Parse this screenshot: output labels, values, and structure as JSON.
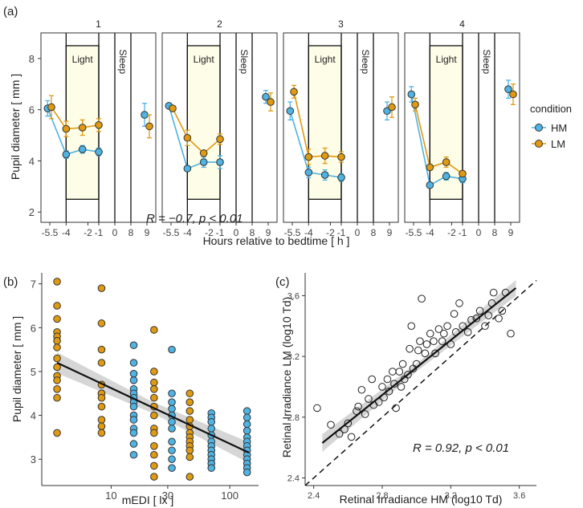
{
  "chart_data": [
    {
      "type": "line",
      "panel_label": "(a)",
      "ylabel": "Pupil diameter [ mm ]",
      "xlabel": "Hours relative to bedtime [ h ]",
      "ylim": [
        1.6,
        9.0
      ],
      "y_ticks": [
        2,
        4,
        6,
        8
      ],
      "x_ticks": [
        "-5.5",
        "-4",
        "-2",
        "-1",
        "0",
        "8",
        "9"
      ],
      "facets": [
        "1",
        "2",
        "3",
        "4"
      ],
      "light_label": "Light",
      "sleep_label": "Sleep",
      "legend": {
        "title": "condition",
        "entries": [
          "HM",
          "LM"
        ],
        "position": "right"
      },
      "colors": {
        "HM": "#4fb3e3",
        "LM": "#e09a12",
        "light_fill": "#fefde8"
      },
      "series": [
        {
          "name": "HM",
          "color": "#4fb3e3",
          "facets": [
            {
              "points": [
                {
                  "x": -5.7,
                  "y": 6.05,
                  "e": 0.3
                },
                {
                  "x": -4,
                  "y": 4.25,
                  "e": 0.15
                },
                {
                  "x": -2.5,
                  "y": 4.45,
                  "e": 0.15
                },
                {
                  "x": -1,
                  "y": 4.35,
                  "e": 0.15
                }
              ],
              "late": {
                "x": 8.85,
                "y": 5.8,
                "e": 0.45
              }
            },
            {
              "points": [
                {
                  "x": -5.7,
                  "y": 6.15,
                  "e": 0.1
                },
                {
                  "x": -4,
                  "y": 3.7,
                  "e": 0.1
                },
                {
                  "x": -2.5,
                  "y": 3.95,
                  "e": 0.2
                },
                {
                  "x": -1,
                  "y": 3.95,
                  "e": 0.25
                }
              ],
              "late": {
                "x": 8.85,
                "y": 6.5,
                "e": 0.25
              }
            },
            {
              "points": [
                {
                  "x": -5.7,
                  "y": 5.95,
                  "e": 0.35
                },
                {
                  "x": -4,
                  "y": 3.55,
                  "e": 0.2
                },
                {
                  "x": -2.5,
                  "y": 3.45,
                  "e": 0.2
                },
                {
                  "x": -1,
                  "y": 3.35,
                  "e": 0.15
                }
              ],
              "late": {
                "x": 8.85,
                "y": 5.95,
                "e": 0.35
              }
            },
            {
              "points": [
                {
                  "x": -5.7,
                  "y": 6.6,
                  "e": 0.3
                },
                {
                  "x": -4,
                  "y": 3.05,
                  "e": 0.1
                },
                {
                  "x": -2.5,
                  "y": 3.4,
                  "e": 0.15
                },
                {
                  "x": -1,
                  "y": 3.3,
                  "e": 0.15
                }
              ],
              "late": {
                "x": 8.85,
                "y": 6.8,
                "e": 0.35
              }
            }
          ]
        },
        {
          "name": "LM",
          "color": "#e09a12",
          "facets": [
            {
              "points": [
                {
                  "x": -5.35,
                  "y": 6.1,
                  "e": 0.45
                },
                {
                  "x": -4,
                  "y": 5.25,
                  "e": 0.3
                },
                {
                  "x": -2.5,
                  "y": 5.3,
                  "e": 0.3
                },
                {
                  "x": -1,
                  "y": 5.4,
                  "e": 0.25
                }
              ],
              "late": {
                "x": 9.15,
                "y": 5.35,
                "e": 0.45
              }
            },
            {
              "points": [
                {
                  "x": -5.35,
                  "y": 6.05,
                  "e": 0.1
                },
                {
                  "x": -4,
                  "y": 4.9,
                  "e": 0.3
                },
                {
                  "x": -2.5,
                  "y": 4.3,
                  "e": 0.1
                },
                {
                  "x": -1,
                  "y": 4.85,
                  "e": 0.2
                }
              ],
              "late": {
                "x": 9.15,
                "y": 6.3,
                "e": 0.35
              }
            },
            {
              "points": [
                {
                  "x": -5.35,
                  "y": 6.7,
                  "e": 0.25
                },
                {
                  "x": -4,
                  "y": 4.15,
                  "e": 0.3
                },
                {
                  "x": -2.5,
                  "y": 4.2,
                  "e": 0.3
                },
                {
                  "x": -1,
                  "y": 4.15,
                  "e": 0.2
                }
              ],
              "late": {
                "x": 9.15,
                "y": 6.1,
                "e": 0.4
              }
            },
            {
              "points": [
                {
                  "x": -5.35,
                  "y": 6.2,
                  "e": 0.25
                },
                {
                  "x": -4,
                  "y": 3.75,
                  "e": 0.1
                },
                {
                  "x": -2.5,
                  "y": 3.95,
                  "e": 0.2
                },
                {
                  "x": -1,
                  "y": 3.5,
                  "e": 0.1
                }
              ],
              "late": {
                "x": 9.15,
                "y": 6.6,
                "e": 0.4
              }
            }
          ]
        }
      ]
    },
    {
      "type": "scatter",
      "panel_label": "(b)",
      "xlabel": "mEDI [ lx ]",
      "ylabel": "Pupil diameter [ mm ]",
      "x_scale": "log10",
      "xlim": [
        2.6,
        175
      ],
      "ylim": [
        2.4,
        7.25
      ],
      "x_ticks": [
        10,
        30,
        100
      ],
      "y_ticks": [
        3,
        4,
        5,
        6,
        7
      ],
      "annotation": "R = −0.7, p < 0.01",
      "fit": {
        "x": [
          3.5,
          145
        ],
        "y": [
          5.2,
          3.15
        ]
      },
      "groups": [
        {
          "color": "#e09a12",
          "x": 3.5,
          "y": [
            7.05,
            6.5,
            6.2,
            5.9,
            5.8,
            5.7,
            5.55,
            5.3,
            5.1,
            4.9,
            4.8,
            4.6,
            4.4,
            3.6
          ]
        },
        {
          "color": "#e09a12",
          "x": 8.3,
          "y": [
            6.9,
            6.1,
            5.5,
            5.2,
            4.7,
            4.5,
            4.5,
            4.4,
            4.2,
            3.9,
            3.75,
            3.6
          ]
        },
        {
          "color": "#4fb3e3",
          "x": 15.5,
          "y": [
            5.6,
            5.2,
            4.95,
            4.8,
            4.6,
            4.5,
            4.4,
            4.3,
            4.2,
            4.0,
            3.9,
            3.7,
            3.6,
            3.35,
            3.1
          ]
        },
        {
          "color": "#e09a12",
          "x": 23,
          "y": [
            5.95,
            5.0,
            4.75,
            4.6,
            4.4,
            4.2,
            4.0,
            3.7,
            3.6,
            3.3,
            3.1,
            2.85,
            2.6
          ]
        },
        {
          "color": "#4fb3e3",
          "x": 32.5,
          "y": [
            5.5,
            4.5,
            4.3,
            4.15,
            4.0,
            3.85,
            3.7,
            3.4,
            3.2,
            3.0,
            2.8
          ]
        },
        {
          "color": "#e09a12",
          "x": 46,
          "y": [
            4.5,
            4.3,
            4.1,
            3.9,
            3.75,
            3.6,
            3.5,
            3.4,
            3.3,
            3.2,
            3.05,
            2.6
          ]
        },
        {
          "color": "#4fb3e3",
          "x": 70,
          "y": [
            4.05,
            3.95,
            3.85,
            3.7,
            3.55,
            3.4,
            3.3,
            3.2,
            3.1,
            3.0,
            2.9,
            2.8
          ]
        },
        {
          "color": "#4fb3e3",
          "x": 140,
          "y": [
            4.1,
            3.95,
            3.8,
            3.65,
            3.5,
            3.4,
            3.3,
            3.2,
            3.1,
            3.0,
            2.9,
            2.8,
            2.7
          ]
        }
      ]
    },
    {
      "type": "scatter",
      "panel_label": "(c)",
      "xlabel": "Retinal Irradiance HM (log10 Td)",
      "ylabel": "Retinal Irradiance LM (log10 Td)",
      "xlim": [
        2.35,
        3.7
      ],
      "ylim": [
        2.35,
        3.75
      ],
      "x_ticks": [
        "2.4",
        "2.8",
        "3.2",
        "3.6"
      ],
      "y_ticks": [
        "2.4",
        "2.8",
        "3.2",
        "3.6"
      ],
      "annotation": "R = 0.92, p < 0.01",
      "fit": {
        "x": [
          2.45,
          3.58
        ],
        "y": [
          2.63,
          3.65
        ]
      },
      "identity_line": true,
      "points": [
        [
          2.42,
          2.86
        ],
        [
          2.5,
          2.75
        ],
        [
          2.55,
          2.69
        ],
        [
          2.58,
          2.72
        ],
        [
          2.6,
          2.76
        ],
        [
          2.62,
          2.67
        ],
        [
          2.65,
          2.84
        ],
        [
          2.66,
          2.87
        ],
        [
          2.68,
          2.98
        ],
        [
          2.7,
          2.82
        ],
        [
          2.72,
          2.92
        ],
        [
          2.74,
          3.05
        ],
        [
          2.75,
          2.88
        ],
        [
          2.78,
          2.9
        ],
        [
          2.8,
          3.0
        ],
        [
          2.81,
          2.93
        ],
        [
          2.83,
          3.05
        ],
        [
          2.84,
          2.97
        ],
        [
          2.86,
          3.1
        ],
        [
          2.87,
          3.02
        ],
        [
          2.88,
          2.86
        ],
        [
          2.9,
          3.1
        ],
        [
          2.91,
          3.0
        ],
        [
          2.92,
          3.15
        ],
        [
          2.93,
          3.05
        ],
        [
          2.95,
          3.08
        ],
        [
          2.96,
          3.25
        ],
        [
          2.97,
          3.4
        ],
        [
          2.98,
          3.12
        ],
        [
          3.0,
          3.15
        ],
        [
          3.01,
          3.24
        ],
        [
          3.02,
          3.3
        ],
        [
          3.03,
          3.58
        ],
        [
          3.05,
          3.22
        ],
        [
          3.06,
          3.28
        ],
        [
          3.08,
          3.35
        ],
        [
          3.1,
          3.3
        ],
        [
          3.11,
          3.22
        ],
        [
          3.13,
          3.38
        ],
        [
          3.15,
          3.3
        ],
        [
          3.16,
          3.35
        ],
        [
          3.18,
          3.4
        ],
        [
          3.2,
          3.28
        ],
        [
          3.22,
          3.48
        ],
        [
          3.23,
          3.36
        ],
        [
          3.25,
          3.55
        ],
        [
          3.27,
          3.4
        ],
        [
          3.3,
          3.36
        ],
        [
          3.32,
          3.44
        ],
        [
          3.35,
          3.45
        ],
        [
          3.37,
          3.5
        ],
        [
          3.4,
          3.4
        ],
        [
          3.42,
          3.47
        ],
        [
          3.44,
          3.55
        ],
        [
          3.45,
          3.62
        ],
        [
          3.48,
          3.45
        ],
        [
          3.5,
          3.5
        ],
        [
          3.52,
          3.62
        ],
        [
          3.55,
          3.35
        ]
      ]
    }
  ]
}
